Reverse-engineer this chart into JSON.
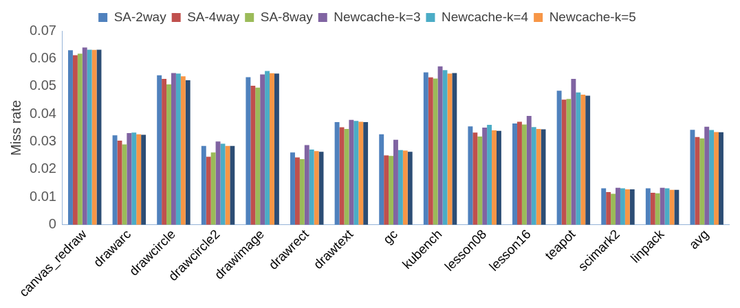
{
  "chart_data": {
    "type": "bar",
    "ylabel": "Miss rate",
    "categories": [
      "canvas_redraw",
      "drawarc",
      "drawcircle",
      "drawcircle2",
      "drawimage",
      "drawrect",
      "drawtext",
      "gc",
      "kubench",
      "lesson08",
      "lesson16",
      "teapot",
      "scimark2",
      "linpack",
      "avg"
    ],
    "series": [
      {
        "name": "SA-2way",
        "color": "#4f81bd",
        "values": [
          0.063,
          0.0323,
          0.054,
          0.0285,
          0.0533,
          0.0261,
          0.0371,
          0.0327,
          0.055,
          0.0355,
          0.0366,
          0.0484,
          0.0132,
          0.0132,
          0.0343
        ]
      },
      {
        "name": "SA-4way",
        "color": "#c0504d",
        "values": [
          0.0612,
          0.0304,
          0.0527,
          0.0246,
          0.0502,
          0.0243,
          0.0352,
          0.0251,
          0.0532,
          0.0333,
          0.0372,
          0.0452,
          0.0118,
          0.0116,
          0.0317
        ]
      },
      {
        "name": "SA-8way",
        "color": "#9bbb59",
        "values": [
          0.0618,
          0.029,
          0.0507,
          0.0261,
          0.0495,
          0.0237,
          0.0346,
          0.0249,
          0.0528,
          0.0319,
          0.0362,
          0.0454,
          0.0112,
          0.0114,
          0.0312
        ]
      },
      {
        "name": "Newcache-k=3",
        "color": "#8064a2",
        "values": [
          0.064,
          0.0331,
          0.0548,
          0.0301,
          0.0543,
          0.0288,
          0.0379,
          0.0307,
          0.0572,
          0.0351,
          0.0393,
          0.0527,
          0.0134,
          0.0134,
          0.0354
        ]
      },
      {
        "name": "Newcache-k=4",
        "color": "#4bacc6",
        "values": [
          0.0632,
          0.0333,
          0.0546,
          0.0293,
          0.0555,
          0.0272,
          0.0375,
          0.027,
          0.0558,
          0.0361,
          0.0353,
          0.0478,
          0.0132,
          0.0132,
          0.0342
        ]
      },
      {
        "name": "Newcache-k=5",
        "color": "#f79646",
        "values": [
          0.0631,
          0.0327,
          0.0536,
          0.0285,
          0.0547,
          0.0266,
          0.0372,
          0.0268,
          0.0546,
          0.0341,
          0.0346,
          0.047,
          0.0128,
          0.0126,
          0.0335
        ]
      },
      {
        "color": "#2c4d75",
        "values": [
          0.0632,
          0.0325,
          0.0522,
          0.0285,
          0.0546,
          0.0264,
          0.0371,
          0.0264,
          0.0548,
          0.0339,
          0.0345,
          0.0466,
          0.0128,
          0.0126,
          0.0334
        ]
      }
    ],
    "ylim": [
      0,
      0.07
    ],
    "yticks": [
      0,
      0.01,
      0.02,
      0.03,
      0.04,
      0.05,
      0.06,
      0.07
    ],
    "grid": false,
    "legend": "top"
  }
}
